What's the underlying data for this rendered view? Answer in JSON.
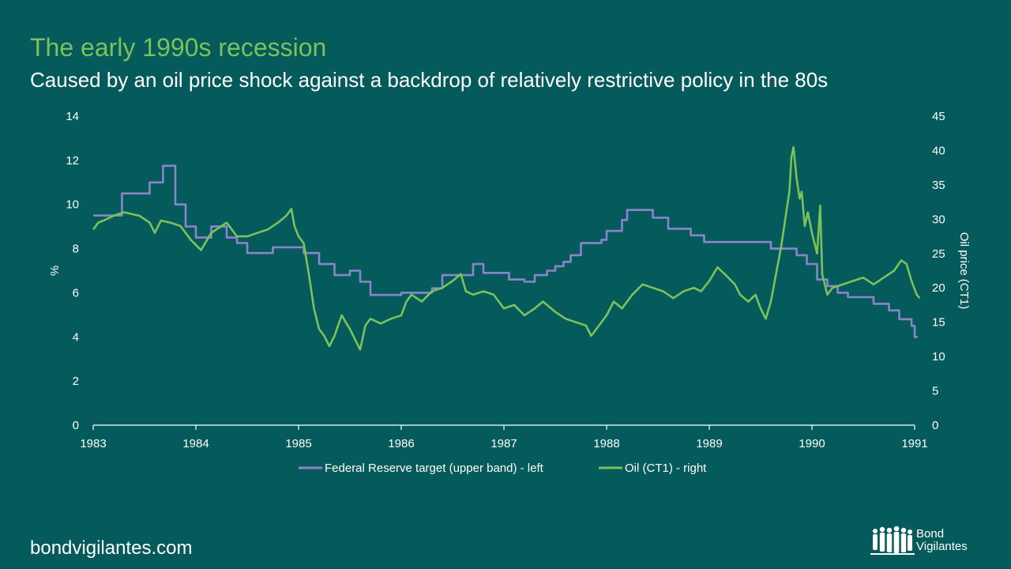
{
  "slide": {
    "title": "The early 1990s recession",
    "subtitle": "Caused by an oil price shock against a backdrop of relatively restrictive policy in the 80s",
    "footer": "bondvigilantes.com"
  },
  "brand": {
    "line1": "Bond",
    "line2": "Vigilantes"
  },
  "colors": {
    "background": "#055A5C",
    "title": "#7DC15A",
    "fed": "#8A84CB",
    "oil": "#7DC15A",
    "axis": "#ffffff"
  },
  "chart_data": {
    "type": "line",
    "title": "",
    "xlabel": "",
    "ylabel_left": "%",
    "ylabel_right": "Oil price (CT1)",
    "xlim": [
      1983,
      1991
    ],
    "ylim_left": [
      0,
      14
    ],
    "ylim_right": [
      0,
      45
    ],
    "x_ticks": [
      "1983",
      "1984",
      "1985",
      "1986",
      "1987",
      "1988",
      "1989",
      "1990",
      "1991"
    ],
    "y_ticks_left": [
      "0",
      "2",
      "4",
      "6",
      "8",
      "10",
      "12",
      "14"
    ],
    "y_ticks_right": [
      "0",
      "5",
      "10",
      "15",
      "20",
      "25",
      "30",
      "35",
      "40",
      "45"
    ],
    "grid": false,
    "legend_position": "bottom",
    "series": [
      {
        "name": "Federal Reserve target (upper band) - left",
        "axis": "left",
        "step": true,
        "points": [
          [
            1983.0,
            9.5
          ],
          [
            1983.28,
            10.5
          ],
          [
            1983.55,
            11.0
          ],
          [
            1983.68,
            11.75
          ],
          [
            1983.8,
            10.0
          ],
          [
            1983.9,
            9.0
          ],
          [
            1984.0,
            8.5
          ],
          [
            1984.15,
            9.0
          ],
          [
            1984.3,
            8.5
          ],
          [
            1984.4,
            8.25
          ],
          [
            1984.5,
            7.8
          ],
          [
            1984.75,
            8.06
          ],
          [
            1985.05,
            7.8
          ],
          [
            1985.2,
            7.3
          ],
          [
            1985.35,
            6.8
          ],
          [
            1985.5,
            7.0
          ],
          [
            1985.6,
            6.5
          ],
          [
            1985.7,
            5.9
          ],
          [
            1986.0,
            6.0
          ],
          [
            1986.3,
            6.2
          ],
          [
            1986.4,
            6.8
          ],
          [
            1986.7,
            7.3
          ],
          [
            1986.8,
            6.9
          ],
          [
            1987.05,
            6.6
          ],
          [
            1987.2,
            6.5
          ],
          [
            1987.3,
            6.8
          ],
          [
            1987.42,
            7.0
          ],
          [
            1987.5,
            7.2
          ],
          [
            1987.58,
            7.4
          ],
          [
            1987.65,
            7.7
          ],
          [
            1987.75,
            8.25
          ],
          [
            1987.95,
            8.4
          ],
          [
            1988.0,
            8.8
          ],
          [
            1988.15,
            9.3
          ],
          [
            1988.2,
            9.75
          ],
          [
            1988.45,
            9.4
          ],
          [
            1988.6,
            8.9
          ],
          [
            1988.82,
            8.6
          ],
          [
            1988.95,
            8.3
          ],
          [
            1989.6,
            8.0
          ],
          [
            1989.85,
            7.7
          ],
          [
            1989.95,
            7.3
          ],
          [
            1990.05,
            6.6
          ],
          [
            1990.15,
            6.3
          ],
          [
            1990.25,
            6.0
          ],
          [
            1990.35,
            5.8
          ],
          [
            1990.6,
            5.5
          ],
          [
            1990.75,
            5.2
          ],
          [
            1990.85,
            4.8
          ],
          [
            1990.97,
            4.5
          ],
          [
            1991.0,
            4.0
          ],
          [
            1991.03,
            4.0
          ]
        ]
      },
      {
        "name": "Oil (CT1) - right",
        "axis": "right",
        "step": false,
        "points": [
          [
            1983.0,
            28.5
          ],
          [
            1983.05,
            29.5
          ],
          [
            1983.1,
            29.8
          ],
          [
            1983.2,
            30.5
          ],
          [
            1983.3,
            31.0
          ],
          [
            1983.45,
            30.5
          ],
          [
            1983.55,
            29.5
          ],
          [
            1983.6,
            28.0
          ],
          [
            1983.66,
            29.8
          ],
          [
            1983.75,
            29.5
          ],
          [
            1983.85,
            29.0
          ],
          [
            1983.95,
            27.0
          ],
          [
            1984.05,
            25.5
          ],
          [
            1984.15,
            28.0
          ],
          [
            1984.25,
            29.0
          ],
          [
            1984.3,
            29.5
          ],
          [
            1984.4,
            27.5
          ],
          [
            1984.5,
            27.5
          ],
          [
            1984.6,
            28.0
          ],
          [
            1984.7,
            28.5
          ],
          [
            1984.8,
            29.5
          ],
          [
            1984.88,
            30.5
          ],
          [
            1984.93,
            31.5
          ],
          [
            1984.96,
            29.0
          ],
          [
            1985.0,
            27.5
          ],
          [
            1985.05,
            26.5
          ],
          [
            1985.1,
            22.0
          ],
          [
            1985.15,
            17.0
          ],
          [
            1985.2,
            14.0
          ],
          [
            1985.25,
            13.0
          ],
          [
            1985.3,
            11.5
          ],
          [
            1985.35,
            13.0
          ],
          [
            1985.42,
            16.0
          ],
          [
            1985.5,
            14.0
          ],
          [
            1985.55,
            12.5
          ],
          [
            1985.6,
            11.0
          ],
          [
            1985.65,
            14.5
          ],
          [
            1985.7,
            15.5
          ],
          [
            1985.8,
            14.8
          ],
          [
            1985.9,
            15.5
          ],
          [
            1986.0,
            16.0
          ],
          [
            1986.05,
            18.0
          ],
          [
            1986.1,
            19.0
          ],
          [
            1986.2,
            18.0
          ],
          [
            1986.3,
            19.5
          ],
          [
            1986.4,
            20.0
          ],
          [
            1986.5,
            21.0
          ],
          [
            1986.58,
            22.0
          ],
          [
            1986.63,
            19.5
          ],
          [
            1986.7,
            19.0
          ],
          [
            1986.8,
            19.5
          ],
          [
            1986.9,
            19.0
          ],
          [
            1987.0,
            17.0
          ],
          [
            1987.1,
            17.5
          ],
          [
            1987.2,
            16.0
          ],
          [
            1987.3,
            17.0
          ],
          [
            1987.38,
            18.0
          ],
          [
            1987.5,
            16.5
          ],
          [
            1987.6,
            15.5
          ],
          [
            1987.7,
            15.0
          ],
          [
            1987.8,
            14.5
          ],
          [
            1987.85,
            13.0
          ],
          [
            1987.9,
            14.0
          ],
          [
            1988.0,
            16.0
          ],
          [
            1988.07,
            18.0
          ],
          [
            1988.15,
            17.0
          ],
          [
            1988.25,
            19.0
          ],
          [
            1988.35,
            20.5
          ],
          [
            1988.45,
            20.0
          ],
          [
            1988.55,
            19.5
          ],
          [
            1988.65,
            18.5
          ],
          [
            1988.75,
            19.5
          ],
          [
            1988.85,
            20.0
          ],
          [
            1988.92,
            19.5
          ],
          [
            1989.0,
            21.0
          ],
          [
            1989.08,
            23.0
          ],
          [
            1989.15,
            22.0
          ],
          [
            1989.25,
            20.5
          ],
          [
            1989.3,
            19.0
          ],
          [
            1989.38,
            18.0
          ],
          [
            1989.45,
            19.0
          ],
          [
            1989.5,
            17.0
          ],
          [
            1989.55,
            15.5
          ],
          [
            1989.6,
            18.0
          ],
          [
            1989.65,
            22.0
          ],
          [
            1989.7,
            26.0
          ],
          [
            1989.73,
            29.0
          ],
          [
            1989.75,
            31.0
          ],
          [
            1989.78,
            34.0
          ],
          [
            1989.8,
            39.0
          ],
          [
            1989.82,
            40.5
          ],
          [
            1989.85,
            36.0
          ],
          [
            1989.88,
            33.0
          ],
          [
            1989.9,
            34.0
          ],
          [
            1989.93,
            29.0
          ],
          [
            1989.96,
            31.0
          ],
          [
            1990.0,
            28.0
          ],
          [
            1990.05,
            25.0
          ],
          [
            1990.08,
            32.0
          ],
          [
            1990.1,
            22.0
          ],
          [
            1990.15,
            19.0
          ],
          [
            1990.2,
            20.0
          ],
          [
            1990.3,
            20.5
          ],
          [
            1990.4,
            21.0
          ],
          [
            1990.5,
            21.5
          ],
          [
            1990.6,
            20.5
          ],
          [
            1990.7,
            21.5
          ],
          [
            1990.8,
            22.5
          ],
          [
            1990.87,
            24.0
          ],
          [
            1990.92,
            23.5
          ],
          [
            1990.97,
            21.0
          ],
          [
            1991.02,
            19.0
          ],
          [
            1991.05,
            18.5
          ]
        ]
      }
    ]
  }
}
